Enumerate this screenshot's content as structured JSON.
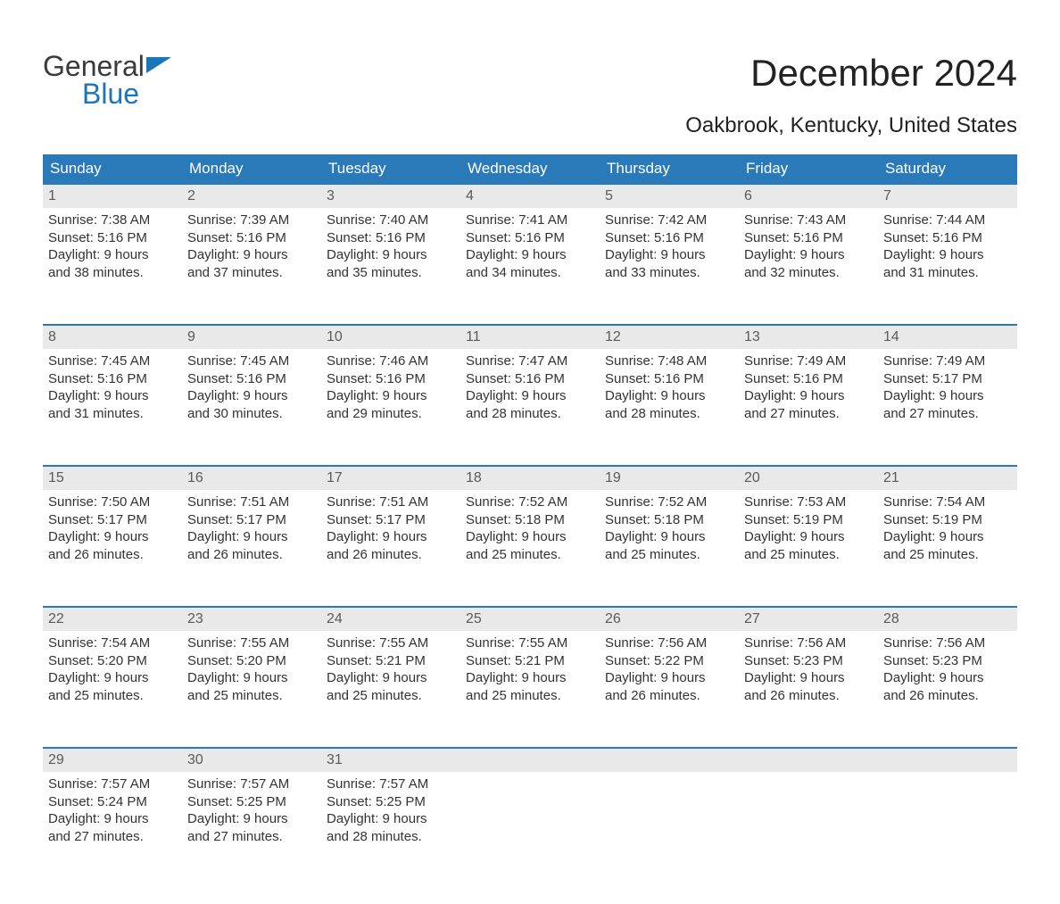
{
  "logo": {
    "word1": "General",
    "word2": "Blue"
  },
  "title": "December 2024",
  "subtitle": "Oakbrook, Kentucky, United States",
  "colors": {
    "header_bg": "#2a79b8",
    "header_text": "#ffffff",
    "daynum_bg": "#e9e9e9",
    "daynum_border": "#2a79b8",
    "body_text": "#333333",
    "logo_blue": "#1976ba"
  },
  "day_names": [
    "Sunday",
    "Monday",
    "Tuesday",
    "Wednesday",
    "Thursday",
    "Friday",
    "Saturday"
  ],
  "weeks": [
    [
      {
        "n": "1",
        "sr": "Sunrise: 7:38 AM",
        "ss": "Sunset: 5:16 PM",
        "d1": "Daylight: 9 hours",
        "d2": "and 38 minutes."
      },
      {
        "n": "2",
        "sr": "Sunrise: 7:39 AM",
        "ss": "Sunset: 5:16 PM",
        "d1": "Daylight: 9 hours",
        "d2": "and 37 minutes."
      },
      {
        "n": "3",
        "sr": "Sunrise: 7:40 AM",
        "ss": "Sunset: 5:16 PM",
        "d1": "Daylight: 9 hours",
        "d2": "and 35 minutes."
      },
      {
        "n": "4",
        "sr": "Sunrise: 7:41 AM",
        "ss": "Sunset: 5:16 PM",
        "d1": "Daylight: 9 hours",
        "d2": "and 34 minutes."
      },
      {
        "n": "5",
        "sr": "Sunrise: 7:42 AM",
        "ss": "Sunset: 5:16 PM",
        "d1": "Daylight: 9 hours",
        "d2": "and 33 minutes."
      },
      {
        "n": "6",
        "sr": "Sunrise: 7:43 AM",
        "ss": "Sunset: 5:16 PM",
        "d1": "Daylight: 9 hours",
        "d2": "and 32 minutes."
      },
      {
        "n": "7",
        "sr": "Sunrise: 7:44 AM",
        "ss": "Sunset: 5:16 PM",
        "d1": "Daylight: 9 hours",
        "d2": "and 31 minutes."
      }
    ],
    [
      {
        "n": "8",
        "sr": "Sunrise: 7:45 AM",
        "ss": "Sunset: 5:16 PM",
        "d1": "Daylight: 9 hours",
        "d2": "and 31 minutes."
      },
      {
        "n": "9",
        "sr": "Sunrise: 7:45 AM",
        "ss": "Sunset: 5:16 PM",
        "d1": "Daylight: 9 hours",
        "d2": "and 30 minutes."
      },
      {
        "n": "10",
        "sr": "Sunrise: 7:46 AM",
        "ss": "Sunset: 5:16 PM",
        "d1": "Daylight: 9 hours",
        "d2": "and 29 minutes."
      },
      {
        "n": "11",
        "sr": "Sunrise: 7:47 AM",
        "ss": "Sunset: 5:16 PM",
        "d1": "Daylight: 9 hours",
        "d2": "and 28 minutes."
      },
      {
        "n": "12",
        "sr": "Sunrise: 7:48 AM",
        "ss": "Sunset: 5:16 PM",
        "d1": "Daylight: 9 hours",
        "d2": "and 28 minutes."
      },
      {
        "n": "13",
        "sr": "Sunrise: 7:49 AM",
        "ss": "Sunset: 5:16 PM",
        "d1": "Daylight: 9 hours",
        "d2": "and 27 minutes."
      },
      {
        "n": "14",
        "sr": "Sunrise: 7:49 AM",
        "ss": "Sunset: 5:17 PM",
        "d1": "Daylight: 9 hours",
        "d2": "and 27 minutes."
      }
    ],
    [
      {
        "n": "15",
        "sr": "Sunrise: 7:50 AM",
        "ss": "Sunset: 5:17 PM",
        "d1": "Daylight: 9 hours",
        "d2": "and 26 minutes."
      },
      {
        "n": "16",
        "sr": "Sunrise: 7:51 AM",
        "ss": "Sunset: 5:17 PM",
        "d1": "Daylight: 9 hours",
        "d2": "and 26 minutes."
      },
      {
        "n": "17",
        "sr": "Sunrise: 7:51 AM",
        "ss": "Sunset: 5:17 PM",
        "d1": "Daylight: 9 hours",
        "d2": "and 26 minutes."
      },
      {
        "n": "18",
        "sr": "Sunrise: 7:52 AM",
        "ss": "Sunset: 5:18 PM",
        "d1": "Daylight: 9 hours",
        "d2": "and 25 minutes."
      },
      {
        "n": "19",
        "sr": "Sunrise: 7:52 AM",
        "ss": "Sunset: 5:18 PM",
        "d1": "Daylight: 9 hours",
        "d2": "and 25 minutes."
      },
      {
        "n": "20",
        "sr": "Sunrise: 7:53 AM",
        "ss": "Sunset: 5:19 PM",
        "d1": "Daylight: 9 hours",
        "d2": "and 25 minutes."
      },
      {
        "n": "21",
        "sr": "Sunrise: 7:54 AM",
        "ss": "Sunset: 5:19 PM",
        "d1": "Daylight: 9 hours",
        "d2": "and 25 minutes."
      }
    ],
    [
      {
        "n": "22",
        "sr": "Sunrise: 7:54 AM",
        "ss": "Sunset: 5:20 PM",
        "d1": "Daylight: 9 hours",
        "d2": "and 25 minutes."
      },
      {
        "n": "23",
        "sr": "Sunrise: 7:55 AM",
        "ss": "Sunset: 5:20 PM",
        "d1": "Daylight: 9 hours",
        "d2": "and 25 minutes."
      },
      {
        "n": "24",
        "sr": "Sunrise: 7:55 AM",
        "ss": "Sunset: 5:21 PM",
        "d1": "Daylight: 9 hours",
        "d2": "and 25 minutes."
      },
      {
        "n": "25",
        "sr": "Sunrise: 7:55 AM",
        "ss": "Sunset: 5:21 PM",
        "d1": "Daylight: 9 hours",
        "d2": "and 25 minutes."
      },
      {
        "n": "26",
        "sr": "Sunrise: 7:56 AM",
        "ss": "Sunset: 5:22 PM",
        "d1": "Daylight: 9 hours",
        "d2": "and 26 minutes."
      },
      {
        "n": "27",
        "sr": "Sunrise: 7:56 AM",
        "ss": "Sunset: 5:23 PM",
        "d1": "Daylight: 9 hours",
        "d2": "and 26 minutes."
      },
      {
        "n": "28",
        "sr": "Sunrise: 7:56 AM",
        "ss": "Sunset: 5:23 PM",
        "d1": "Daylight: 9 hours",
        "d2": "and 26 minutes."
      }
    ],
    [
      {
        "n": "29",
        "sr": "Sunrise: 7:57 AM",
        "ss": "Sunset: 5:24 PM",
        "d1": "Daylight: 9 hours",
        "d2": "and 27 minutes."
      },
      {
        "n": "30",
        "sr": "Sunrise: 7:57 AM",
        "ss": "Sunset: 5:25 PM",
        "d1": "Daylight: 9 hours",
        "d2": "and 27 minutes."
      },
      {
        "n": "31",
        "sr": "Sunrise: 7:57 AM",
        "ss": "Sunset: 5:25 PM",
        "d1": "Daylight: 9 hours",
        "d2": "and 28 minutes."
      },
      null,
      null,
      null,
      null
    ]
  ]
}
